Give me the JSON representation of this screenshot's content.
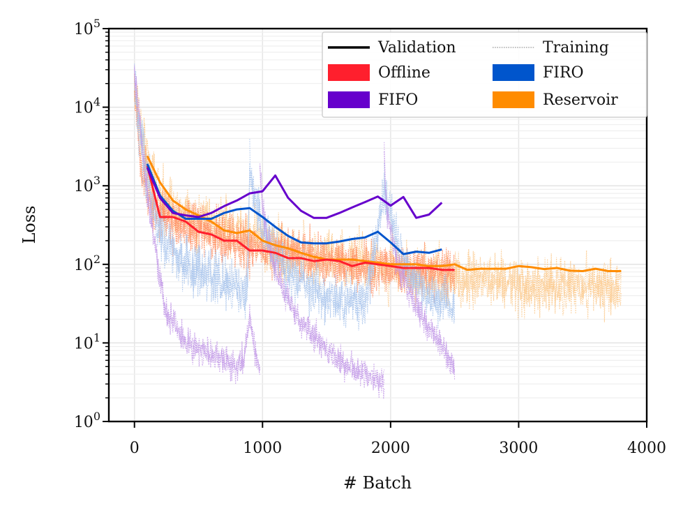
{
  "chart_data": {
    "type": "line",
    "xlabel": "# Batch",
    "ylabel": "Loss",
    "xlim": [
      -200,
      4000
    ],
    "ylim": [
      1,
      100000
    ],
    "yscale": "log",
    "grid": true,
    "x_ticks": [
      0,
      1000,
      2000,
      3000,
      4000
    ],
    "x_tick_labels": [
      "0",
      "1000",
      "2000",
      "3000",
      "4000"
    ],
    "y_ticks": [
      1,
      10,
      100,
      1000,
      10000,
      100000
    ],
    "y_tick_labels": [
      {
        "base": "10",
        "exp": "0"
      },
      {
        "base": "10",
        "exp": "1"
      },
      {
        "base": "10",
        "exp": "2"
      },
      {
        "base": "10",
        "exp": "3"
      },
      {
        "base": "10",
        "exp": "4"
      },
      {
        "base": "10",
        "exp": "5"
      }
    ],
    "legend": {
      "position": "top-right",
      "style_entries": [
        {
          "label": "Validation",
          "style": "solid"
        },
        {
          "label": "Training",
          "style": "dotted"
        }
      ],
      "color_entries": [
        {
          "label": "Offline",
          "color": "#ff1f2d"
        },
        {
          "label": "FIRO",
          "color": "#0055cc"
        },
        {
          "label": "FIFO",
          "color": "#6600cc"
        },
        {
          "label": "Reservoir",
          "color": "#ff8c00"
        }
      ]
    },
    "series": [
      {
        "name": "Offline",
        "color": "#ff1f2d",
        "training_color": "#ff8f66",
        "validation_x": [
          100,
          200,
          300,
          400,
          500,
          600,
          700,
          800,
          900,
          1000,
          1100,
          1200,
          1300,
          1400,
          1500,
          1600,
          1700,
          1800,
          1900,
          2000,
          2100,
          2200,
          2300,
          2400,
          2500
        ],
        "validation_y": [
          1800,
          400,
          400,
          350,
          260,
          240,
          200,
          200,
          150,
          150,
          140,
          120,
          120,
          110,
          115,
          110,
          95,
          105,
          100,
          95,
          90,
          90,
          90,
          85,
          85
        ],
        "training_segments": [
          {
            "x_range": [
              0,
              2500
            ],
            "knots_x": [
              0,
              50,
              150,
              300,
              600,
              1000,
              1500,
              2000,
              2500
            ],
            "knots_y": [
              20000,
              2000,
              500,
              350,
              250,
              150,
              110,
              90,
              80
            ],
            "spread": 2.2
          }
        ]
      },
      {
        "name": "FIRO",
        "color": "#0055cc",
        "training_color": "#a8c4ec",
        "validation_x": [
          100,
          200,
          300,
          400,
          500,
          600,
          700,
          800,
          900,
          1000,
          1100,
          1200,
          1300,
          1400,
          1500,
          1600,
          1700,
          1800,
          1900,
          2000,
          2100,
          2200,
          2300,
          2400
        ],
        "validation_y": [
          1900,
          750,
          480,
          380,
          380,
          380,
          450,
          500,
          520,
          400,
          300,
          230,
          190,
          185,
          185,
          195,
          210,
          220,
          260,
          190,
          135,
          145,
          140,
          155
        ],
        "training_segments": [
          {
            "x_range": [
              0,
              900
            ],
            "knots_x": [
              0,
              80,
              200,
              400,
              700,
              880,
              900
            ],
            "knots_y": [
              20000,
              1500,
              250,
              100,
              60,
              40,
              1500
            ],
            "spread": 2.5
          },
          {
            "x_range": [
              900,
              1950
            ],
            "knots_x": [
              900,
              1000,
              1200,
              1500,
              1800,
              1950
            ],
            "knots_y": [
              1500,
              250,
              80,
              40,
              30,
              800
            ],
            "spread": 2.2
          },
          {
            "x_range": [
              1950,
              2500
            ],
            "knots_x": [
              1950,
              2100,
              2300,
              2500
            ],
            "knots_y": [
              800,
              100,
              40,
              30
            ],
            "spread": 2.0
          }
        ]
      },
      {
        "name": "FIFO",
        "color": "#6600cc",
        "training_color": "#c39ae8",
        "validation_x": [
          100,
          200,
          300,
          400,
          500,
          600,
          700,
          800,
          900,
          1000,
          1100,
          1200,
          1300,
          1400,
          1500,
          1600,
          1700,
          1800,
          1900,
          2000,
          2100,
          2200,
          2300,
          2400
        ],
        "validation_y": [
          1700,
          700,
          450,
          420,
          400,
          450,
          550,
          650,
          800,
          850,
          1350,
          700,
          480,
          390,
          390,
          450,
          530,
          620,
          730,
          560,
          720,
          390,
          430,
          610
        ],
        "training_segments": [
          {
            "x_range": [
              0,
              980
            ],
            "knots_x": [
              0,
              80,
              180,
              250,
              400,
              600,
              800,
              850,
              900,
              940,
              980
            ],
            "knots_y": [
              30000,
              1500,
              100,
              25,
              10,
              7,
              5,
              6,
              20,
              8,
              4
            ],
            "spread": 1.6
          },
          {
            "x_range": [
              980,
              1950
            ],
            "knots_x": [
              980,
              1000,
              1100,
              1250,
              1400,
              1600,
              1800,
              1950
            ],
            "knots_y": [
              2000,
              500,
              80,
              25,
              12,
              6,
              4,
              3
            ],
            "spread": 1.6
          },
          {
            "x_range": [
              1950,
              2500
            ],
            "knots_x": [
              1950,
              1970,
              2050,
              2200,
              2350,
              2500
            ],
            "knots_y": [
              2500,
              500,
              100,
              30,
              12,
              5
            ],
            "spread": 1.6
          }
        ]
      },
      {
        "name": "Reservoir",
        "color": "#ff8c00",
        "training_color": "#fcc98c",
        "validation_x": [
          100,
          200,
          300,
          400,
          500,
          600,
          700,
          800,
          900,
          1000,
          1100,
          1200,
          1300,
          1400,
          1500,
          1600,
          1700,
          1800,
          1900,
          2000,
          2100,
          2200,
          2300,
          2400,
          2500,
          2600,
          2700,
          2800,
          2900,
          3000,
          3100,
          3200,
          3300,
          3400,
          3500,
          3600,
          3700,
          3800
        ],
        "validation_y": [
          2400,
          1100,
          650,
          500,
          420,
          350,
          270,
          250,
          270,
          200,
          175,
          160,
          140,
          125,
          115,
          115,
          115,
          110,
          105,
          100,
          100,
          100,
          95,
          95,
          100,
          85,
          88,
          88,
          88,
          95,
          92,
          87,
          90,
          83,
          82,
          88,
          82,
          82
        ],
        "training_segments": [
          {
            "x_range": [
              0,
              3800
            ],
            "knots_x": [
              0,
              80,
              200,
              400,
              800,
              1200,
              1800,
              2400,
              3000,
              3800
            ],
            "knots_y": [
              20000,
              2500,
              700,
              400,
              250,
              150,
              100,
              70,
              55,
              50
            ],
            "spread": 2.4
          }
        ]
      }
    ]
  }
}
